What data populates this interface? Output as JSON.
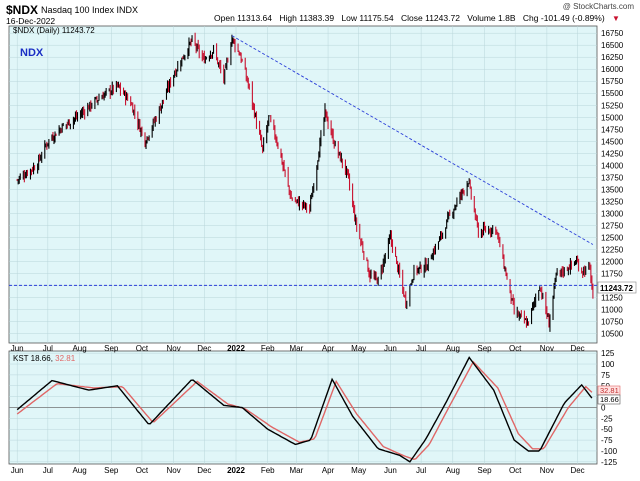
{
  "header": {
    "symbol": "$NDX",
    "name": "Nasdaq 100 Index INDX",
    "date": "16-Dec-2022",
    "open_label": "Open",
    "open": "11313.64",
    "high_label": "High",
    "high": "11383.39",
    "low_label": "Low",
    "low": "11175.54",
    "close_label": "Close",
    "close": "11243.72",
    "volume_label": "Volume",
    "volume": "1.8B",
    "chg_label": "Chg",
    "chg": "-101.49 (-0.89%)",
    "credit": "@ StockCharts.com"
  },
  "price_panel": {
    "legend": "$NDX (Daily) 11243.72",
    "tag": "NDX",
    "last_value": "11243.72",
    "colors": {
      "up": "#000000",
      "down": "#c8102e",
      "background": "#e0f6f8",
      "trend": "#2b3fd8",
      "last_badge": "#ffffff"
    }
  },
  "kst_panel": {
    "legend_name": "KST",
    "kst_value": "18.66",
    "signal_value": "32.81",
    "colors": {
      "kst": "#000000",
      "signal": "#e06666"
    }
  },
  "chart_data": [
    {
      "type": "candlestick",
      "title": "$NDX (Daily) 11243.72",
      "yticks": [
        10500,
        10750,
        11000,
        11250,
        11500,
        11750,
        12000,
        12250,
        12500,
        12750,
        13000,
        13250,
        13500,
        13750,
        14000,
        14250,
        14500,
        14750,
        15000,
        15250,
        15500,
        15750,
        16000,
        16250,
        16500,
        16750
      ],
      "ylim": [
        10300,
        16900
      ],
      "x_labels": [
        "Jun",
        "Jul",
        "Aug",
        "Sep",
        "Oct",
        "Nov",
        "Dec",
        "2022",
        "Feb",
        "Mar",
        "Apr",
        "May",
        "Jun",
        "Jul",
        "Aug",
        "Sep",
        "Oct",
        "Nov",
        "Dec"
      ],
      "price_anchors": [
        [
          "2021-06-01",
          13700
        ],
        [
          "2021-06-20",
          14000
        ],
        [
          "2021-07-01",
          14500
        ],
        [
          "2021-07-15",
          14800
        ],
        [
          "2021-08-01",
          15050
        ],
        [
          "2021-08-20",
          15400
        ],
        [
          "2021-09-07",
          15650
        ],
        [
          "2021-09-20",
          15300
        ],
        [
          "2021-10-04",
          14500
        ],
        [
          "2021-10-15",
          15000
        ],
        [
          "2021-11-01",
          15900
        ],
        [
          "2021-11-19",
          16600
        ],
        [
          "2021-11-30",
          16200
        ],
        [
          "2021-12-10",
          16400
        ],
        [
          "2021-12-20",
          15800
        ],
        [
          "2021-12-28",
          16650
        ],
        [
          "2022-01-05",
          16300
        ],
        [
          "2022-01-14",
          15600
        ],
        [
          "2022-01-27",
          14300
        ],
        [
          "2022-02-02",
          15000
        ],
        [
          "2022-02-10",
          14500
        ],
        [
          "2022-02-24",
          13300
        ],
        [
          "2022-03-14",
          13100
        ],
        [
          "2022-03-29",
          15100
        ],
        [
          "2022-04-08",
          14400
        ],
        [
          "2022-04-20",
          13800
        ],
        [
          "2022-04-28",
          12800
        ],
        [
          "2022-05-12",
          11700
        ],
        [
          "2022-05-20",
          11600
        ],
        [
          "2022-06-01",
          12500
        ],
        [
          "2022-06-16",
          11150
        ],
        [
          "2022-06-24",
          11800
        ],
        [
          "2022-07-06",
          11900
        ],
        [
          "2022-07-20",
          12500
        ],
        [
          "2022-07-29",
          12950
        ],
        [
          "2022-08-16",
          13680
        ],
        [
          "2022-08-26",
          12600
        ],
        [
          "2022-09-12",
          12700
        ],
        [
          "2022-09-30",
          10950
        ],
        [
          "2022-10-13",
          10700
        ],
        [
          "2022-10-25",
          11500
        ],
        [
          "2022-11-03",
          10700
        ],
        [
          "2022-11-10",
          11700
        ],
        [
          "2022-11-30",
          12000
        ],
        [
          "2022-12-05",
          11800
        ],
        [
          "2022-12-13",
          11850
        ],
        [
          "2022-12-16",
          11244
        ]
      ],
      "horizontal_line": 11500,
      "trendline": [
        [
          "2021-12-28",
          16700
        ],
        [
          "2022-12-16",
          12350
        ]
      ]
    },
    {
      "type": "line",
      "title": "KST 18.66, 32.81",
      "yticks": [
        -125,
        -100,
        -75,
        -50,
        -25,
        0,
        25,
        50,
        75,
        100,
        125
      ],
      "ylim": [
        -130,
        130
      ],
      "x_labels": [
        "Jun",
        "Jul",
        "Aug",
        "Sep",
        "Oct",
        "Nov",
        "Dec",
        "2022",
        "Feb",
        "Mar",
        "Apr",
        "May",
        "Jun",
        "Jul",
        "Aug",
        "Sep",
        "Oct",
        "Nov",
        "Dec"
      ],
      "series": [
        {
          "name": "KST",
          "anchors": [
            [
              "2021-06-01",
              -5
            ],
            [
              "2021-07-05",
              62
            ],
            [
              "2021-08-10",
              40
            ],
            [
              "2021-09-07",
              50
            ],
            [
              "2021-10-08",
              -40
            ],
            [
              "2021-11-19",
              65
            ],
            [
              "2021-12-20",
              5
            ],
            [
              "2022-01-07",
              0
            ],
            [
              "2022-02-01",
              -50
            ],
            [
              "2022-02-28",
              -85
            ],
            [
              "2022-03-15",
              -75
            ],
            [
              "2022-04-05",
              65
            ],
            [
              "2022-04-25",
              -20
            ],
            [
              "2022-05-20",
              -95
            ],
            [
              "2022-06-10",
              -110
            ],
            [
              "2022-06-20",
              -125
            ],
            [
              "2022-07-05",
              -75
            ],
            [
              "2022-07-25",
              10
            ],
            [
              "2022-08-17",
              115
            ],
            [
              "2022-09-10",
              40
            ],
            [
              "2022-09-30",
              -75
            ],
            [
              "2022-10-14",
              -100
            ],
            [
              "2022-10-25",
              -100
            ],
            [
              "2022-11-18",
              10
            ],
            [
              "2022-12-05",
              52
            ],
            [
              "2022-12-16",
              18.66
            ]
          ]
        },
        {
          "name": "Signal",
          "anchors": [
            [
              "2021-06-01",
              -15
            ],
            [
              "2021-07-10",
              55
            ],
            [
              "2021-08-15",
              45
            ],
            [
              "2021-09-12",
              48
            ],
            [
              "2021-10-12",
              -35
            ],
            [
              "2021-11-24",
              60
            ],
            [
              "2021-12-24",
              8
            ],
            [
              "2022-01-10",
              -3
            ],
            [
              "2022-02-05",
              -45
            ],
            [
              "2022-03-04",
              -80
            ],
            [
              "2022-03-19",
              -72
            ],
            [
              "2022-04-09",
              60
            ],
            [
              "2022-04-29",
              -15
            ],
            [
              "2022-05-25",
              -90
            ],
            [
              "2022-06-15",
              -112
            ],
            [
              "2022-06-25",
              -120
            ],
            [
              "2022-07-09",
              -85
            ],
            [
              "2022-07-28",
              0
            ],
            [
              "2022-08-21",
              105
            ],
            [
              "2022-09-14",
              45
            ],
            [
              "2022-10-04",
              -60
            ],
            [
              "2022-10-18",
              -95
            ],
            [
              "2022-10-29",
              -95
            ],
            [
              "2022-11-22",
              0
            ],
            [
              "2022-12-09",
              48
            ],
            [
              "2022-12-16",
              32.81
            ]
          ]
        }
      ],
      "zero_line": 0
    }
  ]
}
